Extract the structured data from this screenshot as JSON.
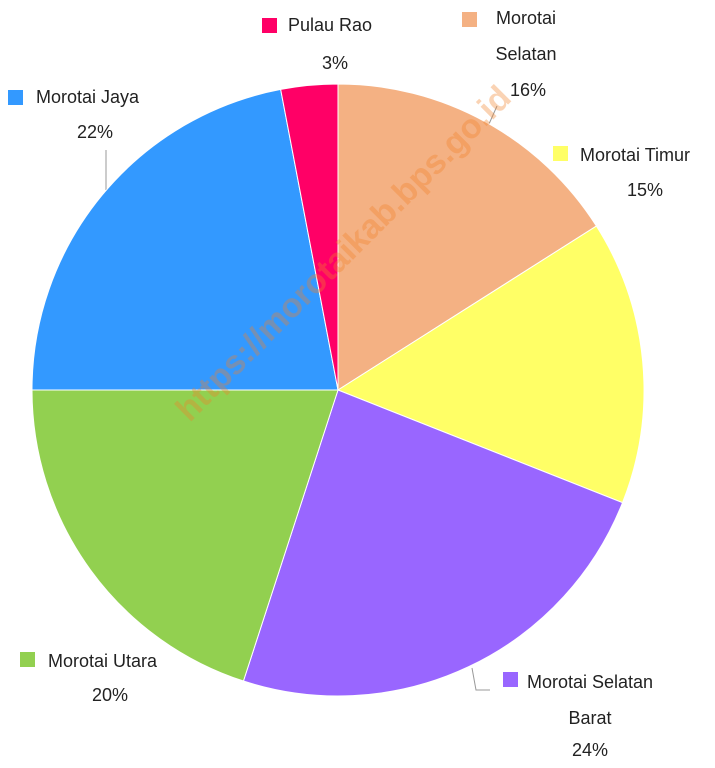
{
  "chart_data": {
    "type": "pie",
    "categories": [
      "Morotai Selatan",
      "Morotai Timur",
      "Morotai Selatan Barat",
      "Morotai Utara",
      "Morotai Jaya",
      "Pulau Rao"
    ],
    "values": [
      16,
      15,
      24,
      20,
      22,
      3
    ],
    "value_labels": [
      "16%",
      "15%",
      "24%",
      "20%",
      "22%",
      "3%"
    ],
    "colors": [
      "#f4b183",
      "#ffff66",
      "#9966ff",
      "#92d050",
      "#3399ff",
      "#ff0066"
    ],
    "watermark": "https://morotaikab.bps.go.id"
  }
}
